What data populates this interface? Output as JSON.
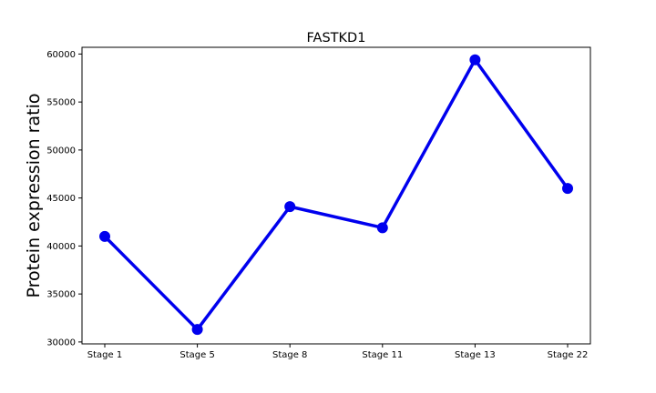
{
  "chart_data": {
    "type": "line",
    "title": "FASTKD1",
    "xlabel": "",
    "ylabel": "Protein expression ratio",
    "categories": [
      "Stage 1",
      "Stage 5",
      "Stage 8",
      "Stage 11",
      "Stage 13",
      "Stage 22"
    ],
    "series": [
      {
        "values": [
          41000,
          31300,
          44100,
          41900,
          59400,
          46000
        ],
        "color": "#0000ee"
      }
    ],
    "ylim": [
      29800,
      60700
    ],
    "yticks": [
      30000,
      35000,
      40000,
      45000,
      50000,
      55000,
      60000
    ],
    "grid": false,
    "legend": "none"
  }
}
